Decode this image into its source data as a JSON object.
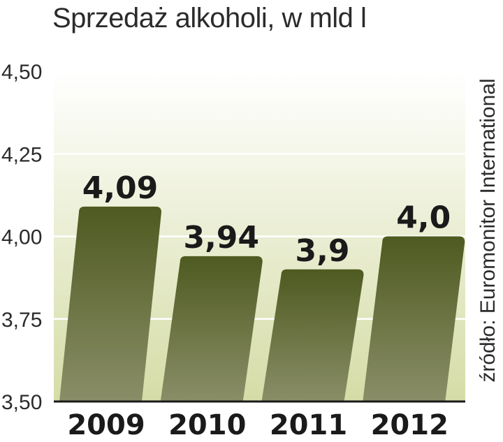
{
  "chart_data": {
    "type": "bar",
    "title": "Sprzedaż alkoholi, w mld l",
    "source": "źródło: Euromonitor International",
    "categories": [
      "2009",
      "2010",
      "2011",
      "2012"
    ],
    "values": [
      4.09,
      3.94,
      3.9,
      4.0
    ],
    "value_labels": [
      "4,09",
      "3,94",
      "3,9",
      "4,0"
    ],
    "yticks": [
      3.5,
      3.75,
      4.0,
      4.25,
      4.5
    ],
    "ytick_labels": [
      "3,50",
      "3,75",
      "4,00",
      "4,25",
      "4,50"
    ],
    "ylim": [
      3.5,
      4.5
    ],
    "grid": true,
    "colors": {
      "bar_top": "#4e5a20",
      "bar_bottom": "#8a8e68",
      "bg_top": "#ffffff",
      "bg_bottom": "#d5dca6",
      "grid": "#ffffff"
    }
  }
}
